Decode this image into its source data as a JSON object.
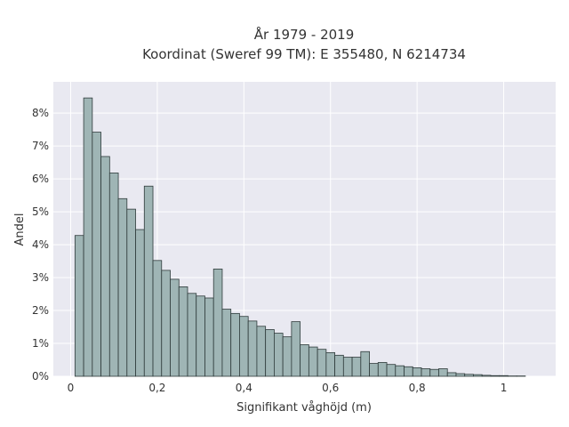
{
  "chart_data": {
    "type": "bar",
    "title_line1": "År 1979 - 2019",
    "title_line2": "Koordinat (Sweref 99 TM): E 355480, N 6214734",
    "xlabel": "Signifikant våghöjd (m)",
    "ylabel": "Andel",
    "xlim": [
      -0.04,
      1.12
    ],
    "ylim": [
      0,
      8.95
    ],
    "grid": true,
    "x_ticks": [
      {
        "value": 0,
        "label": "0"
      },
      {
        "value": 0.2,
        "label": "0,2"
      },
      {
        "value": 0.4,
        "label": "0,4"
      },
      {
        "value": 0.6,
        "label": "0,6"
      },
      {
        "value": 0.8,
        "label": "0,8"
      },
      {
        "value": 1.0,
        "label": "1"
      }
    ],
    "y_ticks": [
      {
        "value": 0,
        "label": "0%"
      },
      {
        "value": 1,
        "label": "1%"
      },
      {
        "value": 2,
        "label": "2%"
      },
      {
        "value": 3,
        "label": "3%"
      },
      {
        "value": 4,
        "label": "4%"
      },
      {
        "value": 5,
        "label": "5%"
      },
      {
        "value": 6,
        "label": "6%"
      },
      {
        "value": 7,
        "label": "7%"
      },
      {
        "value": 8,
        "label": "8%"
      }
    ],
    "bin_start": 0.01,
    "bin_width": 0.02,
    "values": [
      4.28,
      8.46,
      7.42,
      6.68,
      6.18,
      5.4,
      5.08,
      4.46,
      5.78,
      3.52,
      3.22,
      2.95,
      2.72,
      2.52,
      2.44,
      2.38,
      3.26,
      2.04,
      1.91,
      1.82,
      1.68,
      1.52,
      1.42,
      1.31,
      1.2,
      1.66,
      0.96,
      0.89,
      0.82,
      0.72,
      0.64,
      0.58,
      0.58,
      0.75,
      0.39,
      0.42,
      0.36,
      0.32,
      0.29,
      0.26,
      0.23,
      0.21,
      0.23,
      0.11,
      0.08,
      0.06,
      0.05,
      0.03,
      0.02,
      0.02,
      0.01,
      0.01
    ]
  }
}
